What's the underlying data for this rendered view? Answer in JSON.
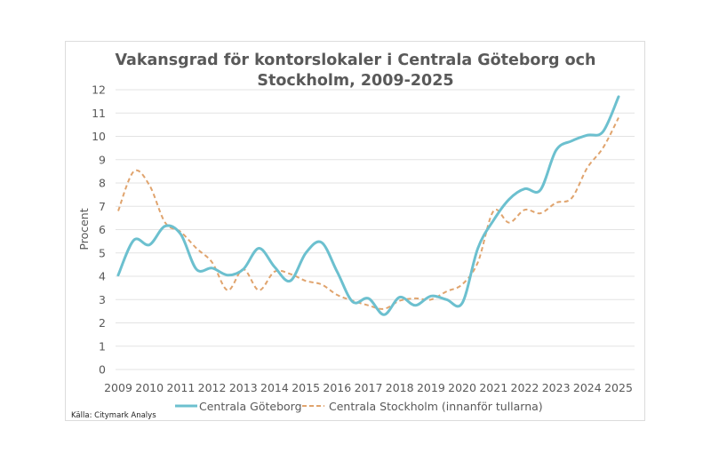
{
  "chart_data": {
    "type": "line",
    "title_lines": [
      "Vakansgrad för kontorslokaler i Centrala Göteborg och",
      "Stockholm, 2009-2025"
    ],
    "xlabel": "",
    "ylabel": "Procent",
    "xlim": [
      2009,
      2025
    ],
    "ylim": [
      0,
      12
    ],
    "grid": true,
    "x_ticks": [
      "2009",
      "2010",
      "2011",
      "2012",
      "2013",
      "2014",
      "2015",
      "2016",
      "2017",
      "2018",
      "2019",
      "2020",
      "2021",
      "2022",
      "2023",
      "2024",
      "2025"
    ],
    "y_ticks": [
      "0",
      "1",
      "2",
      "3",
      "4",
      "5",
      "6",
      "7",
      "8",
      "9",
      "10",
      "11",
      "12"
    ],
    "x": [
      2009,
      2009.5,
      2010,
      2010.5,
      2011,
      2011.5,
      2012,
      2012.5,
      2013,
      2013.5,
      2014,
      2014.5,
      2015,
      2015.5,
      2016,
      2016.5,
      2017,
      2017.5,
      2018,
      2018.5,
      2019,
      2019.5,
      2020,
      2020.5,
      2021,
      2021.5,
      2022,
      2022.5,
      2023,
      2023.5,
      2024,
      2024.5,
      2025
    ],
    "series": [
      {
        "name": "Centrala Göteborg",
        "style": "solid",
        "color": "#6cc0cf",
        "values": [
          4.05,
          5.55,
          5.35,
          6.15,
          5.8,
          4.3,
          4.35,
          4.05,
          4.3,
          5.2,
          4.4,
          3.8,
          5.0,
          5.45,
          4.2,
          2.9,
          3.05,
          2.35,
          3.1,
          2.75,
          3.15,
          3.0,
          2.85,
          5.2,
          6.4,
          7.3,
          7.75,
          7.7,
          9.4,
          9.8,
          10.05,
          10.2,
          11.7
        ]
      },
      {
        "name": "Centrala Stockholm (innanför tullarna)",
        "style": "dashed",
        "color": "#e0a46e",
        "values": [
          6.8,
          8.5,
          7.9,
          6.3,
          5.9,
          5.2,
          4.6,
          3.4,
          4.3,
          3.4,
          4.2,
          4.1,
          3.8,
          3.65,
          3.2,
          2.95,
          2.75,
          2.6,
          2.95,
          3.05,
          3.0,
          3.35,
          3.65,
          4.6,
          6.8,
          6.3,
          6.85,
          6.7,
          7.15,
          7.35,
          8.65,
          9.5,
          10.8
        ]
      }
    ],
    "legend_position": "bottom",
    "source": "Källa: Citymark Analys"
  }
}
